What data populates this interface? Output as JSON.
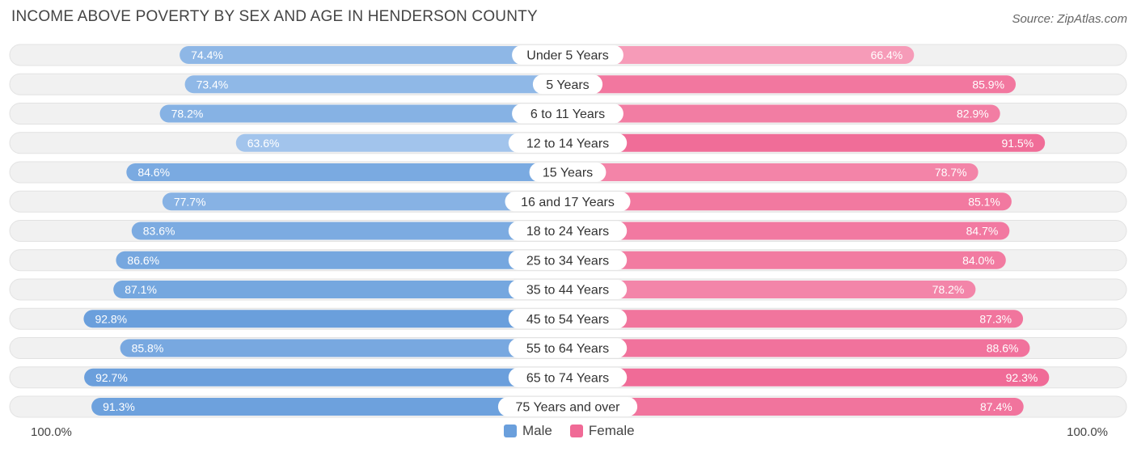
{
  "title": "INCOME ABOVE POVERTY BY SEX AND AGE IN HENDERSON COUNTY",
  "source": "Source: ZipAtlas.com",
  "colors": {
    "male": "#6a9fdc",
    "male_light": "#a9c9ee",
    "female": "#f06a96",
    "female_light": "#f7a7c0",
    "track": "#f1f1f1"
  },
  "axis": {
    "left_label": "100.0%",
    "right_label": "100.0%"
  },
  "legend": {
    "male": "Male",
    "female": "Female"
  },
  "chart_data": {
    "type": "bar",
    "title": "INCOME ABOVE POVERTY BY SEX AND AGE IN HENDERSON COUNTY",
    "orientation": "diverging-horizontal",
    "xlim": [
      0,
      100
    ],
    "categories": [
      "Under 5 Years",
      "5 Years",
      "6 to 11 Years",
      "12 to 14 Years",
      "15 Years",
      "16 and 17 Years",
      "18 to 24 Years",
      "25 to 34 Years",
      "35 to 44 Years",
      "45 to 54 Years",
      "55 to 64 Years",
      "65 to 74 Years",
      "75 Years and over"
    ],
    "series": [
      {
        "name": "Male",
        "values": [
          74.4,
          73.4,
          78.2,
          63.6,
          84.6,
          77.7,
          83.6,
          86.6,
          87.1,
          92.8,
          85.8,
          92.7,
          91.3
        ],
        "labels": [
          "74.4%",
          "73.4%",
          "78.2%",
          "63.6%",
          "84.6%",
          "77.7%",
          "83.6%",
          "86.6%",
          "87.1%",
          "92.8%",
          "85.8%",
          "92.7%",
          "91.3%"
        ]
      },
      {
        "name": "Female",
        "values": [
          66.4,
          85.9,
          82.9,
          91.5,
          78.7,
          85.1,
          84.7,
          84.0,
          78.2,
          87.3,
          88.6,
          92.3,
          87.4
        ],
        "labels": [
          "66.4%",
          "85.9%",
          "82.9%",
          "91.5%",
          "78.7%",
          "85.1%",
          "84.7%",
          "84.0%",
          "78.2%",
          "87.3%",
          "88.6%",
          "92.3%",
          "87.4%"
        ]
      }
    ]
  }
}
